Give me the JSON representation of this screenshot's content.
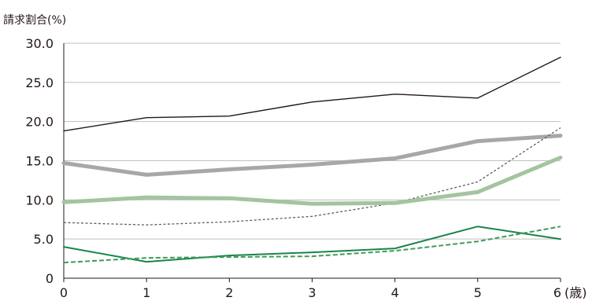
{
  "chart_data": {
    "type": "line",
    "title": "",
    "ylabel": "請求割合(%)",
    "xunit": "(歳)",
    "ylim": [
      0,
      30
    ],
    "yticks": [
      "0",
      "5.0",
      "10.0",
      "15.0",
      "20.0",
      "25.0",
      "30.0"
    ],
    "yticks_values": [
      0,
      5,
      10,
      15,
      20,
      25,
      30
    ],
    "categories": [
      "0",
      "1",
      "2",
      "3",
      "4",
      "5",
      "6"
    ],
    "grid": true,
    "series": [
      {
        "color": "#231815",
        "style": "solid-thin",
        "values": [
          18.8,
          20.5,
          20.7,
          22.5,
          23.5,
          23.0,
          28.2
        ]
      },
      {
        "color": "#a7a7ab",
        "style": "solid-thick",
        "values": [
          14.7,
          13.2,
          13.9,
          14.5,
          15.3,
          17.5,
          18.2
        ]
      },
      {
        "color": "#5f5f5f",
        "style": "dashed-thin",
        "values": [
          7.1,
          6.8,
          7.2,
          7.9,
          9.6,
          12.3,
          19.2
        ]
      },
      {
        "color": "#a4c4a0",
        "style": "solid-thick",
        "values": [
          9.7,
          10.3,
          10.2,
          9.5,
          9.6,
          11.0,
          15.4
        ]
      },
      {
        "color": "#19854a",
        "style": "solid",
        "values": [
          4.0,
          2.1,
          2.9,
          3.3,
          3.8,
          6.6,
          5.0
        ]
      },
      {
        "color": "#3f9a5c",
        "style": "dashed",
        "values": [
          2.0,
          2.6,
          2.7,
          2.8,
          3.5,
          4.7,
          6.6
        ]
      }
    ]
  }
}
